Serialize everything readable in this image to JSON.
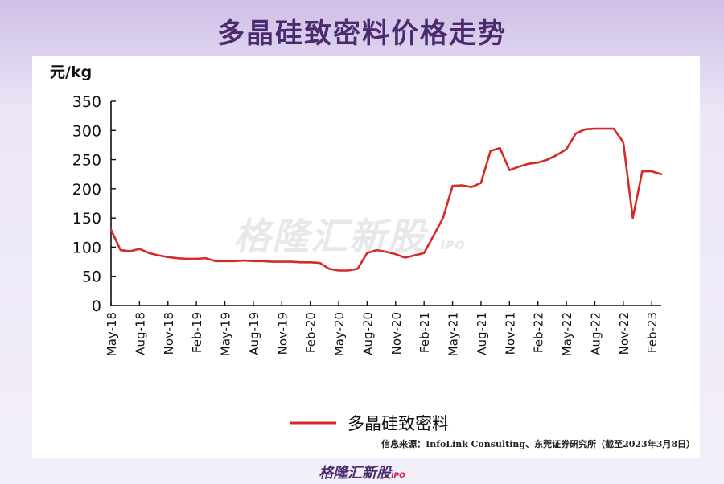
{
  "header": {
    "title": "多晶硅致密料价格走势"
  },
  "source_note": "信息来源：InfoLink Consulting、东莞证券研究所（截至2023年3月8日）",
  "watermark": {
    "text": "格隆汇新股",
    "sub": "IPO"
  },
  "footer_logo": {
    "text": "格隆汇新股",
    "sub": "IPO"
  },
  "colors": {
    "line": "#d42a2a",
    "title": "#4b2a6e"
  },
  "chart_data": {
    "type": "line",
    "title": "多晶硅致密料价格走势",
    "ylabel": "元/kg",
    "xlabel": "",
    "ylim": [
      0,
      350
    ],
    "yticks": [
      0,
      50,
      100,
      150,
      200,
      250,
      300,
      350
    ],
    "x_range": [
      "May-18",
      "Mar-23"
    ],
    "xticks": [
      "May-18",
      "Aug-18",
      "Nov-18",
      "Feb-19",
      "May-19",
      "Aug-19",
      "Nov-19",
      "Feb-20",
      "May-20",
      "Aug-20",
      "Nov-20",
      "Feb-21",
      "May-21",
      "Aug-21",
      "Nov-21",
      "Feb-22",
      "May-22",
      "Aug-22",
      "Nov-22",
      "Feb-23"
    ],
    "legend": "bottom-center",
    "series": [
      {
        "name": "多晶硅致密料",
        "x": [
          "May-18",
          "Jun-18",
          "Jul-18",
          "Aug-18",
          "Sep-18",
          "Oct-18",
          "Nov-18",
          "Dec-18",
          "Jan-19",
          "Feb-19",
          "Mar-19",
          "Apr-19",
          "May-19",
          "Jun-19",
          "Jul-19",
          "Aug-19",
          "Sep-19",
          "Oct-19",
          "Nov-19",
          "Dec-19",
          "Jan-20",
          "Feb-20",
          "Mar-20",
          "Apr-20",
          "May-20",
          "Jun-20",
          "Jul-20",
          "Aug-20",
          "Sep-20",
          "Oct-20",
          "Nov-20",
          "Dec-20",
          "Jan-21",
          "Feb-21",
          "Mar-21",
          "Apr-21",
          "May-21",
          "Jun-21",
          "Jul-21",
          "Aug-21",
          "Sep-21",
          "Oct-21",
          "Nov-21",
          "Dec-21",
          "Jan-22",
          "Feb-22",
          "Mar-22",
          "Apr-22",
          "May-22",
          "Jun-22",
          "Jul-22",
          "Aug-22",
          "Sep-22",
          "Oct-22",
          "Nov-22",
          "Dec-22",
          "Jan-23",
          "Feb-23",
          "Mar-23"
        ],
        "values": [
          130,
          95,
          93,
          97,
          90,
          86,
          83,
          81,
          80,
          80,
          81,
          76,
          76,
          76,
          77,
          76,
          76,
          75,
          75,
          75,
          74,
          74,
          73,
          63,
          60,
          60,
          63,
          90,
          95,
          92,
          88,
          82,
          86,
          90,
          120,
          150,
          205,
          206,
          203,
          210,
          265,
          270,
          232,
          238,
          243,
          245,
          250,
          258,
          268,
          295,
          302,
          303,
          303,
          303,
          280,
          150,
          230,
          230,
          225
        ]
      }
    ]
  }
}
